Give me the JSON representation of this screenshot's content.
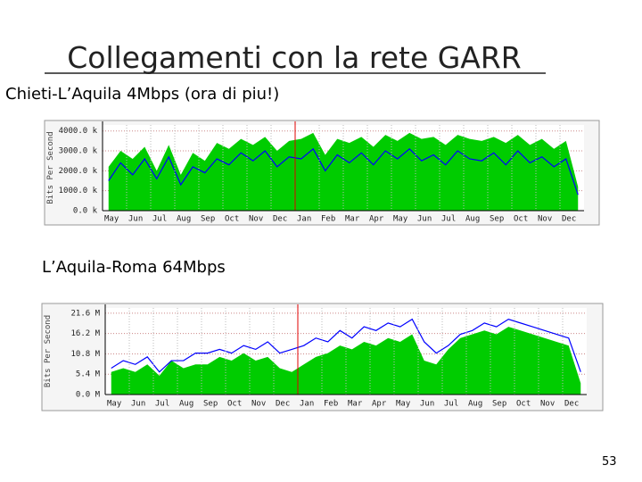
{
  "slide": {
    "title": "Collegamenti con la rete GARR",
    "page_number": "53"
  },
  "chart_data": [
    {
      "type": "area-line",
      "title": "Chieti-L’Aquila 4Mbps (ora di piu!)",
      "y_label": "Bits Per Second",
      "categories": [
        "May",
        null,
        "Jun",
        null,
        "Jul",
        null,
        "Aug",
        null,
        "Sep",
        null,
        "Oct",
        null,
        "Nov",
        null,
        "Dec",
        null,
        "Jan",
        null,
        "Feb",
        null,
        "Mar",
        null,
        "Apr",
        null,
        "May",
        null,
        "Jun",
        null,
        "Jul",
        null,
        "Aug",
        null,
        "Sep",
        null,
        "Oct",
        null,
        "Nov",
        null,
        "Dec",
        null
      ],
      "series": [
        {
          "color": "#00cc00",
          "values": [
            2200,
            3000,
            2600,
            3200,
            2000,
            3300,
            1800,
            2900,
            2500,
            3400,
            3100,
            3600,
            3300,
            3700,
            3000,
            3500,
            3600,
            3900,
            2800,
            3600,
            3400,
            3700,
            3200,
            3800,
            3500,
            3900,
            3600,
            3700,
            3300,
            3800,
            3600,
            3500,
            3700,
            3400,
            3800,
            3300,
            3600,
            3100,
            3500,
            1200
          ]
        },
        {
          "color": "#0000ff",
          "values": [
            1500,
            2400,
            1800,
            2600,
            1600,
            2700,
            1300,
            2200,
            1900,
            2600,
            2300,
            2900,
            2500,
            3000,
            2200,
            2700,
            2600,
            3100,
            2000,
            2800,
            2400,
            2900,
            2300,
            3000,
            2600,
            3100,
            2500,
            2800,
            2300,
            3000,
            2600,
            2500,
            2900,
            2300,
            3000,
            2400,
            2700,
            2200,
            2600,
            800
          ]
        }
      ],
      "ylim": [
        0,
        4300
      ],
      "yticks": [
        {
          "value": 0,
          "label": "0.0 k"
        },
        {
          "value": 1000,
          "label": "1000.0 k"
        },
        {
          "value": 2000,
          "label": "2000.0 k"
        },
        {
          "value": 3000,
          "label": "3000.0 k"
        },
        {
          "value": 4000,
          "label": "4000.0 k"
        }
      ],
      "grid": true
    },
    {
      "type": "area-line",
      "title": "L’Aquila-Roma 64Mbps",
      "y_label": "Bits Per Second",
      "categories": [
        "May",
        null,
        "Jun",
        null,
        "Jul",
        null,
        "Aug",
        null,
        "Sep",
        null,
        "Oct",
        null,
        "Nov",
        null,
        "Dec",
        null,
        "Jan",
        null,
        "Feb",
        null,
        "Mar",
        null,
        "Apr",
        null,
        "May",
        null,
        "Jun",
        null,
        "Jul",
        null,
        "Aug",
        null,
        "Sep",
        null,
        "Oct",
        null,
        "Nov",
        null,
        "Dec",
        null
      ],
      "series": [
        {
          "color": "#00cc00",
          "values": [
            6,
            7,
            6,
            8,
            5,
            9,
            7,
            8,
            8,
            10,
            9,
            11,
            9,
            10,
            7,
            6,
            8,
            10,
            11,
            13,
            12,
            14,
            13,
            15,
            14,
            16,
            9,
            8,
            12,
            15,
            16,
            17,
            16,
            18,
            17,
            16,
            15,
            14,
            13,
            3
          ]
        },
        {
          "color": "#0000ff",
          "values": [
            7,
            9,
            8,
            10,
            6,
            9,
            9,
            11,
            11,
            12,
            11,
            13,
            12,
            14,
            11,
            12,
            13,
            15,
            14,
            17,
            15,
            18,
            17,
            19,
            18,
            20,
            14,
            11,
            13,
            16,
            17,
            19,
            18,
            20,
            19,
            18,
            17,
            16,
            15,
            6
          ]
        }
      ],
      "ylim": [
        0,
        23
      ],
      "yticks": [
        {
          "value": 0,
          "label": "0.0 M"
        },
        {
          "value": 5.4,
          "label": "5.4 M"
        },
        {
          "value": 10.8,
          "label": "10.8 M"
        },
        {
          "value": 16.2,
          "label": "16.2 M"
        },
        {
          "value": 21.6,
          "label": "21.6 M"
        }
      ],
      "grid": true
    }
  ]
}
